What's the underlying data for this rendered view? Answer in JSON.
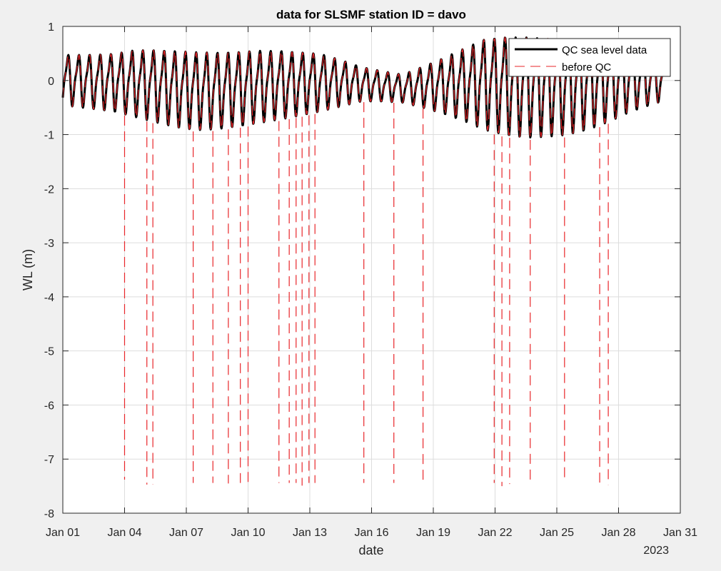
{
  "colors": {
    "figure_bg": "#f0f0f0",
    "axes_bg": "#ffffff",
    "grid": "#dddddd",
    "qc": "#000000",
    "raw": "#e8262a"
  },
  "chart_data": {
    "type": "line",
    "title": "data for SLSMF station ID = davo",
    "xlabel": "date",
    "ylabel": "WL (m)",
    "year_label": "2023",
    "xlim": [
      "2023-01-01",
      "2023-01-31"
    ],
    "ylim": [
      -8,
      1
    ],
    "grid": true,
    "legend_position": "top-right",
    "xticks": [
      "Jan 01",
      "Jan 04",
      "Jan 07",
      "Jan 10",
      "Jan 13",
      "Jan 16",
      "Jan 19",
      "Jan 22",
      "Jan 25",
      "Jan 28",
      "Jan 31"
    ],
    "yticks": [
      "1",
      "0",
      "-1",
      "-2",
      "-3",
      "-4",
      "-5",
      "-6",
      "-7",
      "-8"
    ],
    "series": [
      {
        "name": "QC sea level data",
        "style": "solid",
        "color": "#000000",
        "x_start": "2023-01-01T00:00",
        "x_end": "2023-01-30T06:00",
        "semidiurnal_period_hours": 12.42,
        "daily_envelope": [
          [
            "2023-01-01",
            0.55,
            -0.5
          ],
          [
            "2023-01-02",
            0.56,
            -0.55
          ],
          [
            "2023-01-03",
            0.58,
            -0.6
          ],
          [
            "2023-01-04",
            0.66,
            -0.7
          ],
          [
            "2023-01-05",
            0.67,
            -0.8
          ],
          [
            "2023-01-06",
            0.66,
            -0.9
          ],
          [
            "2023-01-07",
            0.64,
            -0.95
          ],
          [
            "2023-01-08",
            0.63,
            -0.93
          ],
          [
            "2023-01-09",
            0.64,
            -0.88
          ],
          [
            "2023-01-10",
            0.66,
            -0.82
          ],
          [
            "2023-01-11",
            0.65,
            -0.75
          ],
          [
            "2023-01-12",
            0.62,
            -0.68
          ],
          [
            "2023-01-13",
            0.58,
            -0.6
          ],
          [
            "2023-01-14",
            0.45,
            -0.5
          ],
          [
            "2023-01-15",
            0.3,
            -0.4
          ],
          [
            "2023-01-16",
            0.22,
            -0.4
          ],
          [
            "2023-01-17",
            0.15,
            -0.42
          ],
          [
            "2023-01-18",
            0.32,
            -0.52
          ],
          [
            "2023-01-19",
            0.5,
            -0.64
          ],
          [
            "2023-01-20",
            0.7,
            -0.78
          ],
          [
            "2023-01-21",
            0.9,
            -0.95
          ],
          [
            "2023-01-22",
            0.95,
            -1.05
          ],
          [
            "2023-01-23",
            0.95,
            -1.1
          ],
          [
            "2023-01-24",
            0.92,
            -1.08
          ],
          [
            "2023-01-25",
            0.9,
            -1.05
          ],
          [
            "2023-01-26",
            0.86,
            -0.95
          ],
          [
            "2023-01-27",
            0.8,
            -0.8
          ],
          [
            "2023-01-28",
            0.7,
            -0.62
          ],
          [
            "2023-01-29",
            0.52,
            -0.48
          ],
          [
            "2023-01-30",
            0.35,
            -0.35
          ]
        ]
      },
      {
        "name": "before QC",
        "style": "dashed",
        "color": "#e8262a",
        "note_values": "same as QC sea level data plus spikes",
        "spikes": [
          {
            "date": "2023-01-04T00:00",
            "y": -7.38
          },
          {
            "date": "2023-01-05T02:00",
            "y": -7.47
          },
          {
            "date": "2023-01-05T09:00",
            "y": -7.47
          },
          {
            "date": "2023-01-07T08:00",
            "y": -7.44
          },
          {
            "date": "2023-01-08T07:00",
            "y": -7.44
          },
          {
            "date": "2023-01-09T01:00",
            "y": -7.45
          },
          {
            "date": "2023-01-09T15:00",
            "y": -7.44
          },
          {
            "date": "2023-01-10T00:00",
            "y": -7.45
          },
          {
            "date": "2023-01-11T12:00",
            "y": -7.44
          },
          {
            "date": "2023-01-12T00:00",
            "y": -7.44
          },
          {
            "date": "2023-01-12T08:00",
            "y": -7.44
          },
          {
            "date": "2023-01-12T15:00",
            "y": -7.49
          },
          {
            "date": "2023-01-12T23:00",
            "y": -7.44
          },
          {
            "date": "2023-01-13T06:00",
            "y": -7.44
          },
          {
            "date": "2023-01-15T15:00",
            "y": -7.44
          },
          {
            "date": "2023-01-17T02:00",
            "y": -7.44
          },
          {
            "date": "2023-01-18T12:00",
            "y": -7.44
          },
          {
            "date": "2023-01-21T23:00",
            "y": -7.44
          },
          {
            "date": "2023-01-22T08:00",
            "y": -7.5
          },
          {
            "date": "2023-01-22T17:00",
            "y": -7.46
          },
          {
            "date": "2023-01-23T17:00",
            "y": -7.4
          },
          {
            "date": "2023-01-25T09:00",
            "y": -7.4
          },
          {
            "date": "2023-01-27T02:00",
            "y": -7.48
          },
          {
            "date": "2023-01-27T12:00",
            "y": -7.48
          }
        ]
      }
    ]
  }
}
